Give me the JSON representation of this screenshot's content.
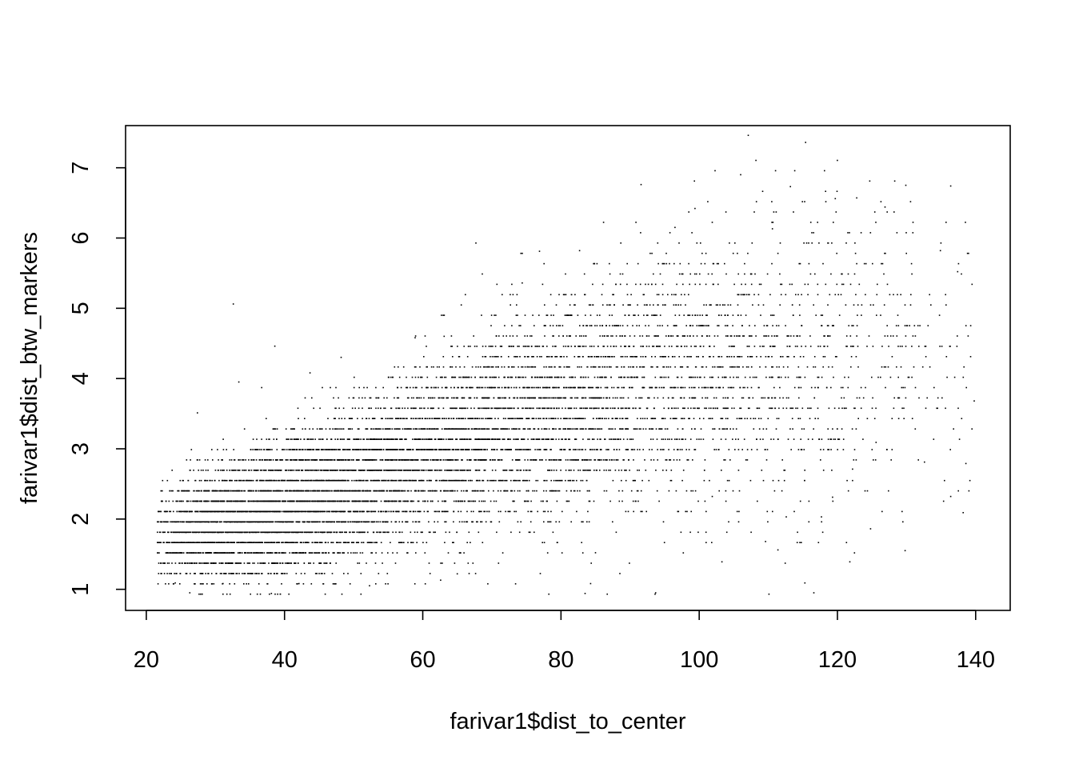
{
  "chart_data": {
    "type": "scatter",
    "title": "",
    "xlabel": "farivar1$dist_to_center",
    "ylabel": "farivar1$dist_btw_markers",
    "xlim": [
      17,
      145
    ],
    "ylim": [
      0.7,
      7.6
    ],
    "x_ticks": [
      20,
      40,
      60,
      80,
      100,
      120,
      140
    ],
    "y_ticks": [
      1,
      2,
      3,
      4,
      5,
      6,
      7
    ],
    "x_tick_labels": [
      "20",
      "40",
      "60",
      "80",
      "100",
      "120",
      "140"
    ],
    "y_tick_labels": [
      "1",
      "2",
      "3",
      "4",
      "5",
      "6",
      "7"
    ],
    "grid": false,
    "legend": "none",
    "marker": "pixel dot",
    "point_color": "#000000",
    "y_levels_step": 0.147,
    "points_note_density": {
      "x_range": [
        21.5,
        139.5
      ],
      "trend": [
        [
          22,
          1.75
        ],
        [
          40,
          2.15
        ],
        [
          60,
          2.9
        ],
        [
          80,
          3.6
        ],
        [
          100,
          4.1
        ],
        [
          120,
          4.3
        ],
        [
          138,
          4.2
        ]
      ],
      "spread": [
        [
          22,
          0.35
        ],
        [
          40,
          0.5
        ],
        [
          60,
          0.6
        ],
        [
          80,
          0.8
        ],
        [
          100,
          1.0
        ],
        [
          120,
          1.1
        ],
        [
          138,
          1.1
        ]
      ],
      "relative_density": [
        [
          22,
          0.3
        ],
        [
          30,
          1.0
        ],
        [
          45,
          1.0
        ],
        [
          60,
          0.8
        ],
        [
          75,
          0.6
        ],
        [
          90,
          0.45
        ],
        [
          105,
          0.3
        ],
        [
          120,
          0.15
        ],
        [
          140,
          0.05
        ]
      ]
    },
    "points": [
      [
        32.5,
        5.07
      ],
      [
        27.3,
        3.52
      ],
      [
        36.6,
        3.88
      ],
      [
        33.3,
        3.96
      ],
      [
        43.6,
        4.09
      ],
      [
        38.5,
        4.47
      ],
      [
        48.1,
        4.31
      ],
      [
        58.8,
        4.59
      ],
      [
        63.0,
        4.61
      ],
      [
        74.3,
        5.37
      ],
      [
        76.8,
        5.82
      ],
      [
        82.6,
        5.83
      ],
      [
        91.5,
        6.77
      ],
      [
        96.4,
        6.16
      ],
      [
        99.3,
        6.43
      ],
      [
        105.9,
        6.91
      ],
      [
        107.0,
        7.47
      ],
      [
        110.5,
        6.14
      ],
      [
        113.1,
        6.74
      ],
      [
        115.3,
        7.37
      ],
      [
        119.6,
        6.57
      ],
      [
        122.7,
        6.58
      ],
      [
        126.8,
        6.45
      ],
      [
        129.8,
        6.76
      ],
      [
        136.3,
        6.75
      ],
      [
        134.8,
        5.83
      ],
      [
        137.3,
        5.53
      ],
      [
        139.7,
        3.69
      ],
      [
        138.5,
        2.8
      ],
      [
        138.1,
        2.1
      ],
      [
        136.3,
        2.33
      ],
      [
        129.7,
        1.56
      ],
      [
        124.7,
        1.87
      ],
      [
        121.7,
        1.4
      ],
      [
        116.5,
        0.96
      ],
      [
        115.2,
        1.1
      ],
      [
        111.3,
        1.57
      ],
      [
        103.2,
        1.4
      ],
      [
        93.6,
        0.96
      ],
      [
        86.6,
        0.94
      ],
      [
        83.4,
        0.95
      ],
      [
        84.2,
        1.09
      ],
      [
        84.9,
        1.53
      ],
      [
        64.9,
        1.23
      ],
      [
        62.5,
        1.14
      ],
      [
        52.2,
        1.06
      ],
      [
        45.8,
        0.94
      ],
      [
        38.0,
        0.95
      ],
      [
        28.0,
        0.94
      ],
      [
        26.2,
        0.96
      ],
      [
        24.1,
        1.1
      ],
      [
        31.0,
        1.09
      ],
      [
        42.0,
        1.09
      ],
      [
        117.6,
        2.04
      ],
      [
        122.1,
        2.72
      ],
      [
        132.5,
        2.82
      ],
      [
        125.5,
        3.1
      ],
      [
        119.2,
        2.32
      ],
      [
        112.5,
        2.04
      ],
      [
        101.8,
        2.33
      ],
      [
        109.5,
        1.69
      ]
    ]
  }
}
